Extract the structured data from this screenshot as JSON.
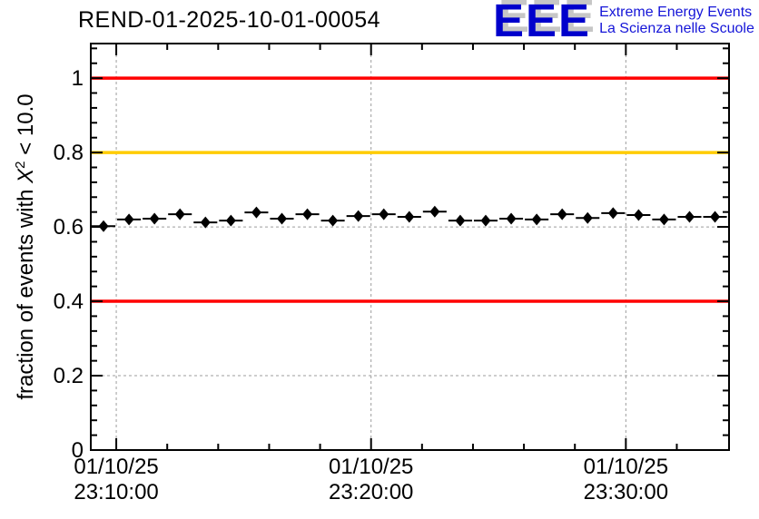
{
  "header": {
    "title": "REND-01-2025-10-01-00054"
  },
  "logo": {
    "acronym": "EEE",
    "line1": "Extreme Energy Events",
    "line2": "La Scienza nelle Scuole",
    "acronym_color": "#0000cc",
    "acronym_shadow_color": "#c6c6c6",
    "text_color": "#1515d8"
  },
  "chart_data": {
    "type": "scatter",
    "title": "REND-01-2025-10-01-00054",
    "ylabel": "fraction of events with X^2 < 10.0",
    "ylabel_parts": {
      "prefix": "fraction of events with ",
      "symbol": "X",
      "superscript": "2",
      "suffix": " < 10.0"
    },
    "xlabel": "",
    "ylim": [
      0,
      1.093
    ],
    "x_range_minutes": [
      0,
      25.05
    ],
    "grid": true,
    "grid_color": "#9c9c9c",
    "marker_color": "#000000",
    "y_ticks": [
      {
        "v": 0.0,
        "label": "0"
      },
      {
        "v": 0.2,
        "label": "0.2"
      },
      {
        "v": 0.4,
        "label": "0.4"
      },
      {
        "v": 0.6,
        "label": "0.6"
      },
      {
        "v": 0.8,
        "label": "0.8"
      },
      {
        "v": 1.0,
        "label": "1"
      }
    ],
    "y_minor_step": 0.04,
    "x_major_ticks": [
      {
        "minute": 1,
        "date": "01/10/25",
        "time": "23:10:00"
      },
      {
        "minute": 11,
        "date": "01/10/25",
        "time": "23:20:00"
      },
      {
        "minute": 21,
        "date": "01/10/25",
        "time": "23:30:00"
      }
    ],
    "x_minor_tick_minutes": [
      3,
      5,
      7,
      9,
      13,
      15,
      17,
      19,
      23
    ],
    "reference_lines": [
      {
        "y": 1.0,
        "color": "#ff0000"
      },
      {
        "y": 0.8,
        "color": "#ffcc00"
      },
      {
        "y": 0.4,
        "color": "#ff0000"
      }
    ],
    "xerr_minutes": 0.5,
    "yerr": 0.005,
    "points": [
      {
        "t": "23:09:30",
        "minute": 0.5,
        "y": 0.602
      },
      {
        "t": "23:10:30",
        "minute": 1.5,
        "y": 0.62
      },
      {
        "t": "23:11:30",
        "minute": 2.5,
        "y": 0.622
      },
      {
        "t": "23:12:30",
        "minute": 3.5,
        "y": 0.634
      },
      {
        "t": "23:13:30",
        "minute": 4.5,
        "y": 0.612
      },
      {
        "t": "23:14:30",
        "minute": 5.5,
        "y": 0.617
      },
      {
        "t": "23:15:30",
        "minute": 6.5,
        "y": 0.639
      },
      {
        "t": "23:16:30",
        "minute": 7.5,
        "y": 0.622
      },
      {
        "t": "23:17:30",
        "minute": 8.5,
        "y": 0.634
      },
      {
        "t": "23:18:30",
        "minute": 9.5,
        "y": 0.617
      },
      {
        "t": "23:19:30",
        "minute": 10.5,
        "y": 0.629
      },
      {
        "t": "23:20:30",
        "minute": 11.5,
        "y": 0.634
      },
      {
        "t": "23:21:30",
        "minute": 12.5,
        "y": 0.627
      },
      {
        "t": "23:22:30",
        "minute": 13.5,
        "y": 0.641
      },
      {
        "t": "23:23:30",
        "minute": 14.5,
        "y": 0.617
      },
      {
        "t": "23:24:30",
        "minute": 15.5,
        "y": 0.617
      },
      {
        "t": "23:25:30",
        "minute": 16.5,
        "y": 0.622
      },
      {
        "t": "23:26:30",
        "minute": 17.5,
        "y": 0.62
      },
      {
        "t": "23:27:30",
        "minute": 18.5,
        "y": 0.634
      },
      {
        "t": "23:28:30",
        "minute": 19.5,
        "y": 0.624
      },
      {
        "t": "23:29:30",
        "minute": 20.5,
        "y": 0.637
      },
      {
        "t": "23:30:30",
        "minute": 21.5,
        "y": 0.632
      },
      {
        "t": "23:31:30",
        "minute": 22.5,
        "y": 0.62
      },
      {
        "t": "23:32:30",
        "minute": 23.5,
        "y": 0.627
      },
      {
        "t": "23:33:30",
        "minute": 24.5,
        "y": 0.627
      }
    ]
  }
}
